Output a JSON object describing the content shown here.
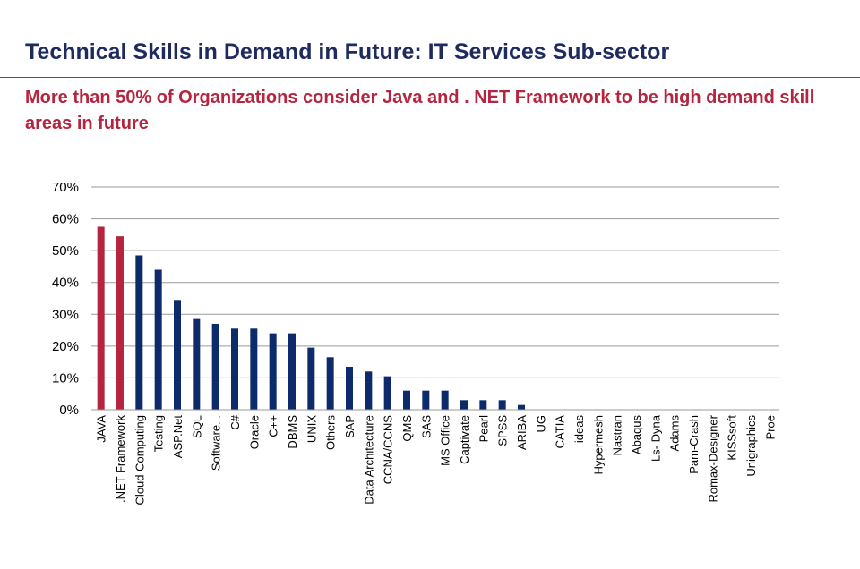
{
  "slide": {
    "title": "Technical Skills in Demand in Future: IT Services Sub-sector",
    "subtitle": "More than 50%  of Organizations consider Java and . NET Framework to be high demand skill areas  in future"
  },
  "colors": {
    "title": "#1f2a5e",
    "accent": "#b5253f",
    "bar_highlight": "#b5253f",
    "bar_default": "#0d2a6b",
    "gridline": "#9a9a9a"
  },
  "chart_data": {
    "type": "bar",
    "title": "",
    "xlabel": "",
    "ylabel": "",
    "ylim": [
      0,
      70
    ],
    "yticks": [
      "0%",
      "10%",
      "20%",
      "30%",
      "40%",
      "50%",
      "60%",
      "70%"
    ],
    "grid": true,
    "legend": "none",
    "categories": [
      "JAVA",
      ".NET Framework",
      "Cloud Computing",
      "Testing",
      "ASP.Net",
      "SQL",
      "Software...",
      "C#",
      "Oracle",
      "C++",
      "DBMS",
      "UNIX",
      "Others",
      "SAP",
      "Data Architecture",
      "CCNA/CCNS",
      "QMS",
      "SAS",
      "MS Office",
      "Captivate",
      "Pearl",
      "SPSS",
      "ARIBA",
      "UG",
      "CATIA",
      "ideas",
      "Hypermesh",
      "Nastran",
      "Abaqus",
      "Ls- Dyna",
      "Adams",
      "Pam-Crash",
      "Romax-Designer",
      "KISSsoft",
      "Unigraphics",
      "Proe"
    ],
    "values": [
      57.5,
      54.5,
      48.5,
      44,
      34.5,
      28.5,
      27,
      25.5,
      25.5,
      24,
      24,
      19.5,
      16.5,
      13.5,
      12,
      10.5,
      6,
      6,
      6,
      3,
      3,
      3,
      1.5,
      0,
      0,
      0,
      0,
      0,
      0,
      0,
      0,
      0,
      0,
      0,
      0,
      0
    ],
    "highlighted": [
      "JAVA",
      ".NET Framework"
    ]
  }
}
